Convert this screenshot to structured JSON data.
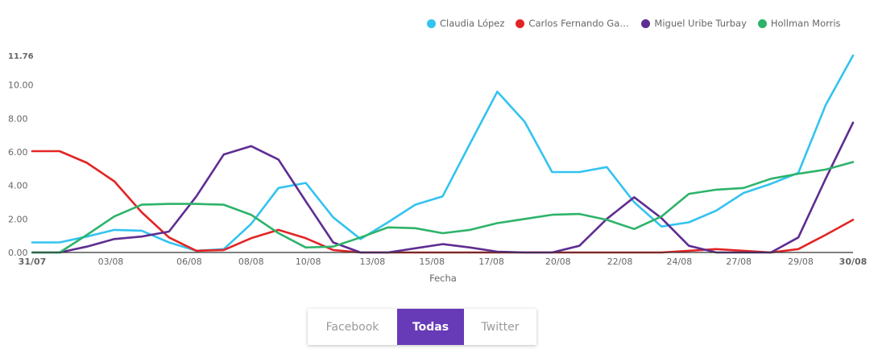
{
  "chart_data": {
    "type": "line",
    "xlabel": "Fecha",
    "ylabel": "",
    "ylim": [
      0,
      11.76
    ],
    "y_ticks": [
      "0.00",
      "2.00",
      "4.00",
      "6.00",
      "8.00",
      "10.00",
      "11.76"
    ],
    "x_ticks": [
      "31/07",
      "03/08",
      "06/08",
      "08/08",
      "10/08",
      "13/08",
      "15/08",
      "17/08",
      "20/08",
      "22/08",
      "24/08",
      "27/08",
      "29/08",
      "30/08"
    ],
    "legend_position": "top-right",
    "grid": false,
    "series": [
      {
        "name": "Claudia López",
        "color": "#33c3f0",
        "values": [
          0.6,
          0.6,
          0.95,
          1.35,
          1.3,
          0.6,
          0.1,
          0.2,
          1.7,
          3.85,
          4.15,
          2.1,
          0.8,
          1.8,
          2.85,
          3.35,
          6.5,
          9.6,
          7.8,
          4.8,
          4.8,
          5.1,
          3.0,
          1.55,
          1.8,
          2.5,
          3.55,
          4.1,
          4.75,
          8.8,
          11.76
        ]
      },
      {
        "name": "Carlos Fernando Galán",
        "color": "#e32424",
        "values": [
          6.05,
          6.05,
          5.35,
          4.25,
          2.4,
          0.9,
          0.1,
          0.15,
          0.85,
          1.35,
          0.85,
          0.15,
          0.0,
          0.0,
          0.0,
          0.0,
          0.0,
          0.0,
          0.0,
          0.0,
          0.0,
          0.0,
          0.0,
          0.0,
          0.1,
          0.2,
          0.1,
          0.0,
          0.2,
          1.05,
          1.95
        ]
      },
      {
        "name": "Miguel Uribe Turbay",
        "color": "#5e2d91",
        "values": [
          0.0,
          0.0,
          0.35,
          0.8,
          0.95,
          1.25,
          3.35,
          5.85,
          6.35,
          5.55,
          3.05,
          0.6,
          0.0,
          0.0,
          0.25,
          0.5,
          0.3,
          0.05,
          0.0,
          0.0,
          0.4,
          2.0,
          3.3,
          2.05,
          0.4,
          0.0,
          0.0,
          0.0,
          0.9,
          4.4,
          7.75
        ]
      },
      {
        "name": "Hollman Morris",
        "color": "#2db36a",
        "values": [
          0.0,
          0.0,
          1.05,
          2.15,
          2.85,
          2.9,
          2.9,
          2.85,
          2.25,
          1.15,
          0.3,
          0.35,
          0.9,
          1.5,
          1.45,
          1.15,
          1.35,
          1.75,
          2.0,
          2.25,
          2.3,
          1.95,
          1.4,
          2.15,
          3.5,
          3.75,
          3.85,
          4.4,
          4.7,
          4.95,
          5.4
        ]
      }
    ]
  },
  "toggle": {
    "facebook": "Facebook",
    "todas": "Todas",
    "twitter": "Twitter",
    "active_color": "#673ab7"
  }
}
